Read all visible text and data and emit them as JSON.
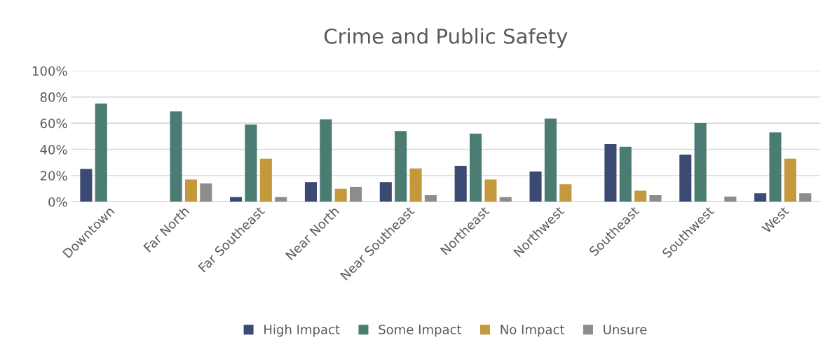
{
  "chart_data": {
    "type": "bar",
    "title": "Crime and Public Safety",
    "categories": [
      "Downtown",
      "Far North",
      "Far Southeast",
      "Near North",
      "Near Southeast",
      "Northeast",
      "Northwest",
      "Southeast",
      "Southwest",
      "West"
    ],
    "series": [
      {
        "name": "High Impact",
        "color": "#3b4a72",
        "values": [
          25,
          0,
          3.5,
          15,
          15,
          27.5,
          23,
          44,
          36,
          6.5
        ]
      },
      {
        "name": "Some Impact",
        "color": "#4a7c72",
        "values": [
          75,
          69,
          59,
          63,
          54,
          52,
          63.5,
          42,
          60,
          53
        ]
      },
      {
        "name": "No Impact",
        "color": "#c4983c",
        "values": [
          0,
          17,
          33,
          10,
          25.5,
          17,
          13.5,
          8.5,
          0,
          33
        ]
      },
      {
        "name": "Unsure",
        "color": "#8c8c8c",
        "values": [
          0,
          14,
          3.5,
          11.5,
          5,
          3.5,
          0,
          5,
          4,
          6.5
        ]
      }
    ],
    "ylim": [
      0,
      100
    ],
    "yticks": [
      {
        "value": 0,
        "label": "0%"
      },
      {
        "value": 20,
        "label": "20%"
      },
      {
        "value": 40,
        "label": "40%"
      },
      {
        "value": 60,
        "label": "60%"
      },
      {
        "value": 80,
        "label": "80%"
      },
      {
        "value": 100,
        "label": "100%"
      }
    ],
    "grid": "y",
    "legend": "bottom"
  }
}
